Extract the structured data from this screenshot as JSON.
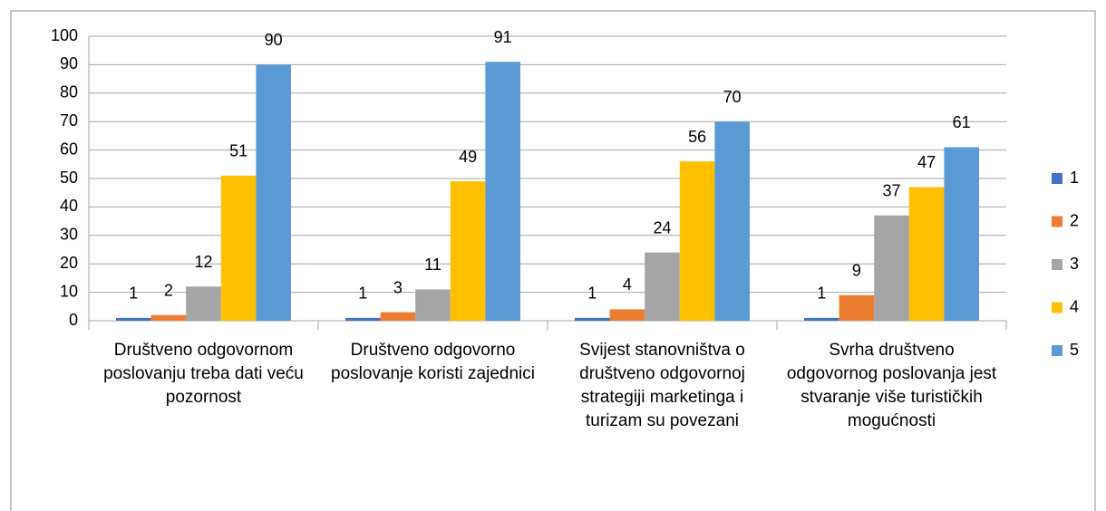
{
  "chart_data": {
    "type": "bar",
    "categories": [
      "Društveno odgovornom poslovanju treba dati veću pozornost",
      "Društveno odgovorno poslovanje koristi zajednici",
      "Svijest stanovništva o društveno odgovornoj strategiji marketinga i turizam su povezani",
      "Svrha društveno odgovornog poslovanja jest stvaranje više turističkih mogućnosti"
    ],
    "series": [
      {
        "name": "1",
        "color": "#4472c4",
        "values": [
          1,
          1,
          1,
          1
        ]
      },
      {
        "name": "2",
        "color": "#ed7d31",
        "values": [
          2,
          3,
          4,
          9
        ]
      },
      {
        "name": "3",
        "color": "#a5a5a5",
        "values": [
          12,
          11,
          24,
          37
        ]
      },
      {
        "name": "4",
        "color": "#ffc000",
        "values": [
          51,
          49,
          56,
          47
        ]
      },
      {
        "name": "5",
        "color": "#5b9bd5",
        "values": [
          90,
          91,
          70,
          61
        ]
      }
    ],
    "ylim": [
      0,
      100
    ],
    "yticks": [
      0,
      10,
      20,
      30,
      40,
      50,
      60,
      70,
      80,
      90,
      100
    ],
    "grid": true,
    "legend": "right"
  }
}
